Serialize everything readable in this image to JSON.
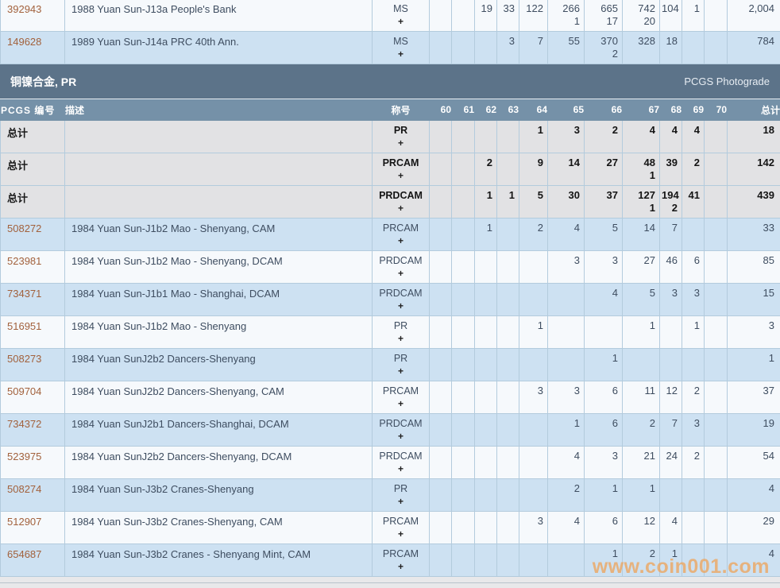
{
  "page": {
    "watermark": "www.coin001.com"
  },
  "colors": {
    "page-bg": "#e8e8ea",
    "band-bg": "#5c7389",
    "header-bg": "#7591a8",
    "row-white": "#f6f9fc",
    "row-blue": "#cde1f2",
    "row-gray": "#e2e2e4",
    "border": "#b3cbdd",
    "link": "#a2613c",
    "text": "#3e4d60",
    "watermark": "#eda55e"
  },
  "section": {
    "title": "铜镍合金, PR",
    "photograde_link": "PCGS Photograde"
  },
  "header": {
    "pcgs": "PCGS 编号",
    "desc": "描述",
    "designation": "称号",
    "grades": [
      "60",
      "61",
      "62",
      "63",
      "64",
      "65",
      "66",
      "67",
      "68",
      "69",
      "70"
    ],
    "total": "总计"
  },
  "top_rows": [
    {
      "pcgs": "392943",
      "desc": "1988 Yuan Sun-J13a People's Bank",
      "designation": "MS",
      "plus": "+",
      "cells": {
        "62": "19",
        "63": "33",
        "64": "122",
        "65": "266",
        "66": "665",
        "67": "742",
        "68": "104",
        "69": "1"
      },
      "subs": {
        "65": "1",
        "66": "17",
        "67": "20"
      },
      "total": "2,004"
    },
    {
      "pcgs": "149628",
      "desc": "1989 Yuan Sun-J14a PRC 40th Ann.",
      "designation": "MS",
      "plus": "+",
      "cells": {
        "63": "3",
        "64": "7",
        "65": "55",
        "66": "370",
        "67": "328",
        "68": "18"
      },
      "subs": {
        "66": "2"
      },
      "total": "784"
    }
  ],
  "total_rows": [
    {
      "label": "总计",
      "designation": "PR",
      "plus": "+",
      "cells": {
        "64": "1",
        "65": "3",
        "66": "2",
        "67": "4",
        "68": "4",
        "69": "4"
      },
      "subs": {},
      "total": "18"
    },
    {
      "label": "总计",
      "designation": "PRCAM",
      "plus": "+",
      "cells": {
        "62": "2",
        "64": "9",
        "65": "14",
        "66": "27",
        "67": "48",
        "68": "39",
        "69": "2"
      },
      "subs": {
        "67": "1"
      },
      "total": "142"
    },
    {
      "label": "总计",
      "designation": "PRDCAM",
      "plus": "+",
      "cells": {
        "62": "1",
        "63": "1",
        "64": "5",
        "65": "30",
        "66": "37",
        "67": "127",
        "68": "194",
        "69": "41"
      },
      "subs": {
        "67": "1",
        "68": "2"
      },
      "total": "439"
    }
  ],
  "coin_rows": [
    {
      "pcgs": "508272",
      "desc": "1984 Yuan Sun-J1b2 Mao - Shenyang, CAM",
      "designation": "PRCAM",
      "plus": "+",
      "cells": {
        "62": "1",
        "64": "2",
        "65": "4",
        "66": "5",
        "67": "14",
        "68": "7"
      },
      "subs": {},
      "total": "33"
    },
    {
      "pcgs": "523981",
      "desc": "1984 Yuan Sun-J1b2 Mao - Shenyang, DCAM",
      "designation": "PRDCAM",
      "plus": "+",
      "cells": {
        "65": "3",
        "66": "3",
        "67": "27",
        "68": "46",
        "69": "6"
      },
      "subs": {},
      "total": "85"
    },
    {
      "pcgs": "734371",
      "desc": "1984 Yuan Sun-J1b1 Mao - Shanghai, DCAM",
      "designation": "PRDCAM",
      "plus": "+",
      "cells": {
        "66": "4",
        "67": "5",
        "68": "3",
        "69": "3"
      },
      "subs": {},
      "total": "15"
    },
    {
      "pcgs": "516951",
      "desc": "1984 Yuan Sun-J1b2 Mao - Shenyang",
      "designation": "PR",
      "plus": "+",
      "cells": {
        "64": "1",
        "67": "1",
        "69": "1"
      },
      "subs": {},
      "total": "3"
    },
    {
      "pcgs": "508273",
      "desc": "1984 Yuan SunJ2b2 Dancers-Shenyang",
      "designation": "PR",
      "plus": "+",
      "cells": {
        "66": "1"
      },
      "subs": {},
      "total": "1"
    },
    {
      "pcgs": "509704",
      "desc": "1984 Yuan SunJ2b2 Dancers-Shenyang, CAM",
      "designation": "PRCAM",
      "plus": "+",
      "cells": {
        "64": "3",
        "65": "3",
        "66": "6",
        "67": "11",
        "68": "12",
        "69": "2"
      },
      "subs": {},
      "total": "37"
    },
    {
      "pcgs": "734372",
      "desc": "1984 Yuan SunJ2b1 Dancers-Shanghai, DCAM",
      "designation": "PRDCAM",
      "plus": "+",
      "cells": {
        "65": "1",
        "66": "6",
        "67": "2",
        "68": "7",
        "69": "3"
      },
      "subs": {},
      "total": "19"
    },
    {
      "pcgs": "523975",
      "desc": "1984 Yuan SunJ2b2 Dancers-Shenyang, DCAM",
      "designation": "PRDCAM",
      "plus": "+",
      "cells": {
        "65": "4",
        "66": "3",
        "67": "21",
        "68": "24",
        "69": "2"
      },
      "subs": {},
      "total": "54"
    },
    {
      "pcgs": "508274",
      "desc": "1984 Yuan Sun-J3b2 Cranes-Shenyang",
      "designation": "PR",
      "plus": "+",
      "cells": {
        "65": "2",
        "66": "1",
        "67": "1"
      },
      "subs": {},
      "total": "4"
    },
    {
      "pcgs": "512907",
      "desc": "1984 Yuan Sun-J3b2 Cranes-Shenyang, CAM",
      "designation": "PRCAM",
      "plus": "+",
      "cells": {
        "64": "3",
        "65": "4",
        "66": "6",
        "67": "12",
        "68": "4"
      },
      "subs": {},
      "total": "29"
    },
    {
      "pcgs": "654687",
      "desc": "1984 Yuan Sun-J3b2 Cranes - Shenyang Mint, CAM",
      "designation": "PRCAM",
      "plus": "+",
      "cells": {
        "66": "1",
        "67": "2",
        "68": "1"
      },
      "subs": {},
      "total": "4"
    }
  ]
}
